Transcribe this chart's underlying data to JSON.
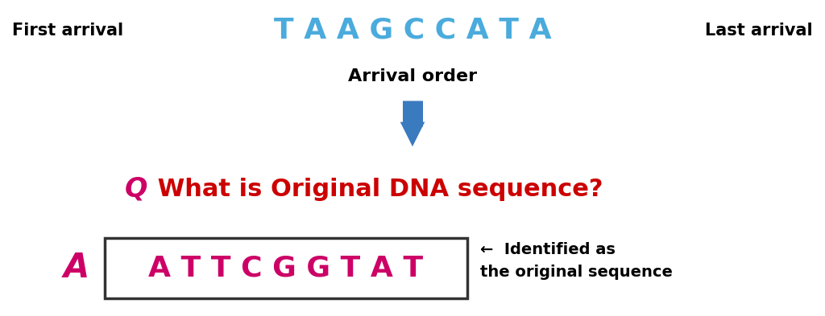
{
  "background_color": "#ffffff",
  "first_arrival_label": "First arrival",
  "last_arrival_label": "Last arrival",
  "arrival_sequence": "T A A G C C A T A",
  "arrival_sequence_color": "#4aabdc",
  "arrival_order_label": "Arrival order",
  "question_Q": "Q",
  "question_Q_color": "#cc0066",
  "question_text": " What is Original DNA sequence?",
  "question_text_color": "#cc0000",
  "answer_A": "A",
  "answer_A_color": "#cc0066",
  "answer_sequence": "A T T C G G T A T",
  "answer_sequence_color": "#cc0066",
  "arrow_label": "←  Identified as\nthe original sequence",
  "arrow_color": "#3a7abf",
  "label_fontsize": 15,
  "seq_fontsize": 26,
  "arrow_label_fontsize": 14,
  "question_fontsize": 22,
  "answer_seq_fontsize": 26,
  "A_label_fontsize": 30
}
